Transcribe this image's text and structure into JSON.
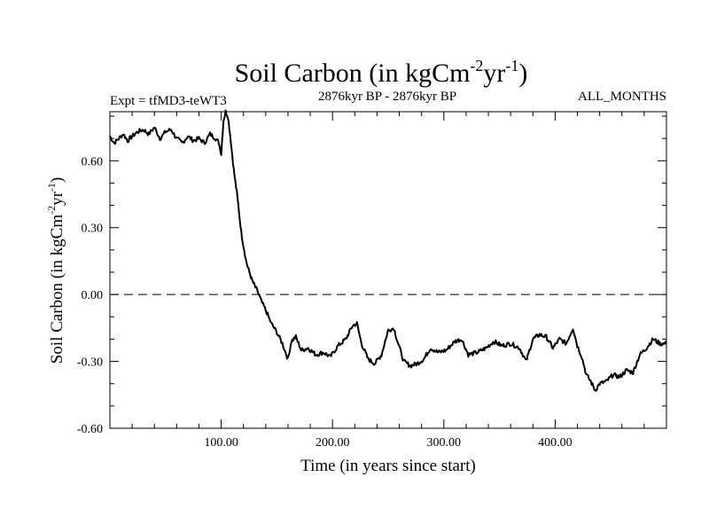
{
  "chart_data": {
    "type": "line",
    "title": "Soil Carbon (in kgCm",
    "title_unit_exp1": "-2",
    "title_unit_mid": "yr",
    "title_unit_exp2": "-1",
    "title_close": ")",
    "subtitle_left": "Expt = tfMD3-teWT3",
    "subtitle_center": "2876kyr BP - 2876kyr BP",
    "subtitle_right": "ALL_MONTHS",
    "xlabel": "Time (in years since start)",
    "ylabel": "Soil Carbon (in kgCm",
    "ylabel_exp1": "-2",
    "ylabel_mid": "yr",
    "ylabel_exp2": "-1",
    "ylabel_close": ")",
    "xlim": [
      0,
      500
    ],
    "ylim": [
      -0.6,
      0.82
    ],
    "x_ticks": [
      100,
      200,
      300,
      400
    ],
    "x_tick_labels": [
      "100.00",
      "200.00",
      "300.00",
      "400.00"
    ],
    "y_ticks": [
      -0.6,
      -0.3,
      0.0,
      0.3,
      0.6
    ],
    "y_tick_labels": [
      "-0.60",
      "-0.30",
      "0.00",
      "0.30",
      "0.60"
    ],
    "reference_line": {
      "y": 0.0,
      "style": "dashed"
    },
    "series": [
      {
        "name": "Soil Carbon",
        "color": "#000000",
        "x": [
          0,
          4,
          8,
          12,
          16,
          20,
          25,
          30,
          35,
          40,
          45,
          50,
          55,
          60,
          65,
          70,
          75,
          80,
          85,
          90,
          95,
          98,
          100,
          102,
          104,
          106,
          108,
          110,
          112,
          114,
          116,
          118,
          120,
          122,
          124,
          126,
          128,
          130,
          133,
          136,
          140,
          145,
          150,
          155,
          160,
          163,
          167,
          172,
          178,
          185,
          192,
          198,
          205,
          212,
          218,
          222,
          226,
          232,
          238,
          244,
          250,
          255,
          259,
          264,
          270,
          276,
          282,
          288,
          295,
          302,
          310,
          316,
          322,
          330,
          338,
          345,
          352,
          360,
          368,
          374,
          380,
          386,
          392,
          398,
          404,
          410,
          416,
          420,
          424,
          428,
          432,
          436,
          440,
          446,
          452,
          458,
          464,
          470,
          476,
          482,
          488,
          494,
          500
        ],
        "y": [
          0.71,
          0.68,
          0.7,
          0.72,
          0.69,
          0.71,
          0.73,
          0.74,
          0.72,
          0.75,
          0.7,
          0.73,
          0.74,
          0.7,
          0.68,
          0.71,
          0.69,
          0.7,
          0.68,
          0.72,
          0.7,
          0.68,
          0.63,
          0.78,
          0.82,
          0.8,
          0.72,
          0.62,
          0.53,
          0.46,
          0.37,
          0.28,
          0.22,
          0.16,
          0.12,
          0.09,
          0.06,
          0.04,
          0.01,
          -0.03,
          -0.07,
          -0.13,
          -0.17,
          -0.22,
          -0.29,
          -0.21,
          -0.19,
          -0.25,
          -0.24,
          -0.27,
          -0.26,
          -0.28,
          -0.23,
          -0.2,
          -0.14,
          -0.13,
          -0.22,
          -0.29,
          -0.31,
          -0.27,
          -0.16,
          -0.15,
          -0.22,
          -0.3,
          -0.32,
          -0.31,
          -0.29,
          -0.24,
          -0.26,
          -0.25,
          -0.21,
          -0.2,
          -0.27,
          -0.26,
          -0.24,
          -0.21,
          -0.23,
          -0.22,
          -0.24,
          -0.3,
          -0.2,
          -0.18,
          -0.19,
          -0.24,
          -0.2,
          -0.22,
          -0.15,
          -0.23,
          -0.28,
          -0.36,
          -0.39,
          -0.43,
          -0.4,
          -0.39,
          -0.36,
          -0.37,
          -0.34,
          -0.35,
          -0.27,
          -0.24,
          -0.2,
          -0.22,
          -0.22
        ]
      }
    ]
  }
}
